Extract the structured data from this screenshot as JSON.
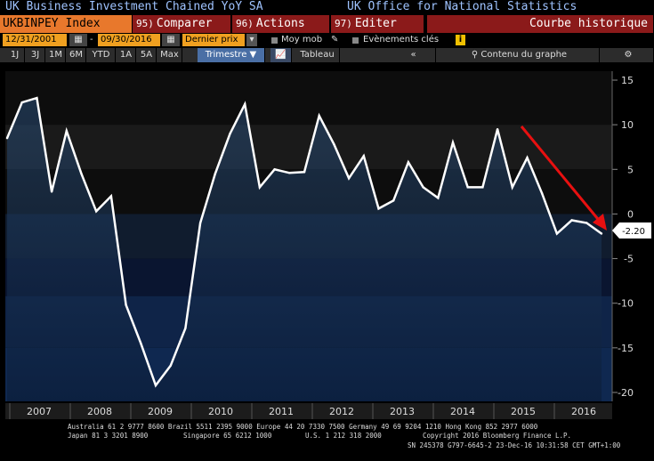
{
  "titlebar": {
    "left": "UK Business Investment Chained YoY SA",
    "right": "UK Office for National Statistics"
  },
  "menubar": {
    "ticker": "UKBINPEY Index",
    "compare_num": "95)",
    "compare_label": "Comparer",
    "actions_num": "96)",
    "actions_label": "Actions",
    "edit_num": "97)",
    "edit_label": "Editer",
    "historic_label": "Courbe historique"
  },
  "controls": {
    "start_date": "12/31/2001",
    "dash": "-",
    "end_date": "09/30/2016",
    "price_type": "Dernier prix",
    "moving_avg": "Moy mob",
    "key_events": "Evènements clés",
    "info": "i"
  },
  "periods": [
    "1J",
    "3J",
    "1M",
    "6M",
    "YTD",
    "1A",
    "5A",
    "Max"
  ],
  "period_selected": "Trimestre",
  "tableau_label": "Tableau",
  "collapse_glyph": "«",
  "content_label": "Contenu du graphe",
  "chart_data": {
    "type": "area",
    "title": "UK Business Investment Chained YoY SA",
    "x_tick_labels": [
      "2007",
      "2008",
      "2009",
      "2010",
      "2011",
      "2012",
      "2013",
      "2014",
      "2015",
      "2016"
    ],
    "x": [
      "2006Q3",
      "2006Q4",
      "2007Q1",
      "2007Q2",
      "2007Q3",
      "2007Q4",
      "2008Q1",
      "2008Q2",
      "2008Q3",
      "2008Q4",
      "2009Q1",
      "2009Q2",
      "2009Q3",
      "2009Q4",
      "2010Q1",
      "2010Q2",
      "2010Q3",
      "2010Q4",
      "2011Q1",
      "2011Q2",
      "2011Q3",
      "2011Q4",
      "2012Q1",
      "2012Q2",
      "2012Q3",
      "2012Q4",
      "2013Q1",
      "2013Q2",
      "2013Q3",
      "2013Q4",
      "2014Q1",
      "2014Q2",
      "2014Q3",
      "2014Q4",
      "2015Q1",
      "2015Q2",
      "2015Q3",
      "2015Q4",
      "2016Q1",
      "2016Q2",
      "2016Q3"
    ],
    "values": [
      8.5,
      12.5,
      13.0,
      2.5,
      9.3,
      4.5,
      0.3,
      2.0,
      -10.2,
      -14.5,
      -19.2,
      -17.0,
      -12.8,
      -1.0,
      4.5,
      9.0,
      12.3,
      3.0,
      5.0,
      4.6,
      4.7,
      11.0,
      7.8,
      4.0,
      6.5,
      0.6,
      1.5,
      5.8,
      3.0,
      1.8,
      8.0,
      3.0,
      3.0,
      9.5,
      3.0,
      6.3,
      2.3,
      -2.2,
      -0.7,
      -1.0,
      -2.2
    ],
    "y_ticks": [
      15,
      10,
      5,
      0,
      -5,
      -10,
      -15,
      -20
    ],
    "ylim": [
      -21,
      16
    ],
    "last_value_label": "-2.20",
    "annotation": "red downward arrow indicating declining trend"
  },
  "footer": {
    "line1": "Australia 61 2 9777 8600 Brazil 5511 2395 9000 Europe 44 20 7330 7500 Germany 49 69 9204 1210 Hong Kong 852 2977 6000",
    "line2a": "Japan 81 3 3201 8900",
    "line2b": "Singapore 65 6212 1000",
    "line2c": "U.S. 1 212 318 2000",
    "line2d": "Copyright 2016 Bloomberg Finance L.P.",
    "line3": "SN 245378 G797-6645-2 23-Dec-16 10:31:58 CET  GMT+1:00"
  },
  "colors": {
    "accent_orange": "#e8782c",
    "menu_red": "#8b1a1a",
    "line": "#ffffff",
    "fill": "#1f3a5a",
    "arrow": "#e81010"
  }
}
